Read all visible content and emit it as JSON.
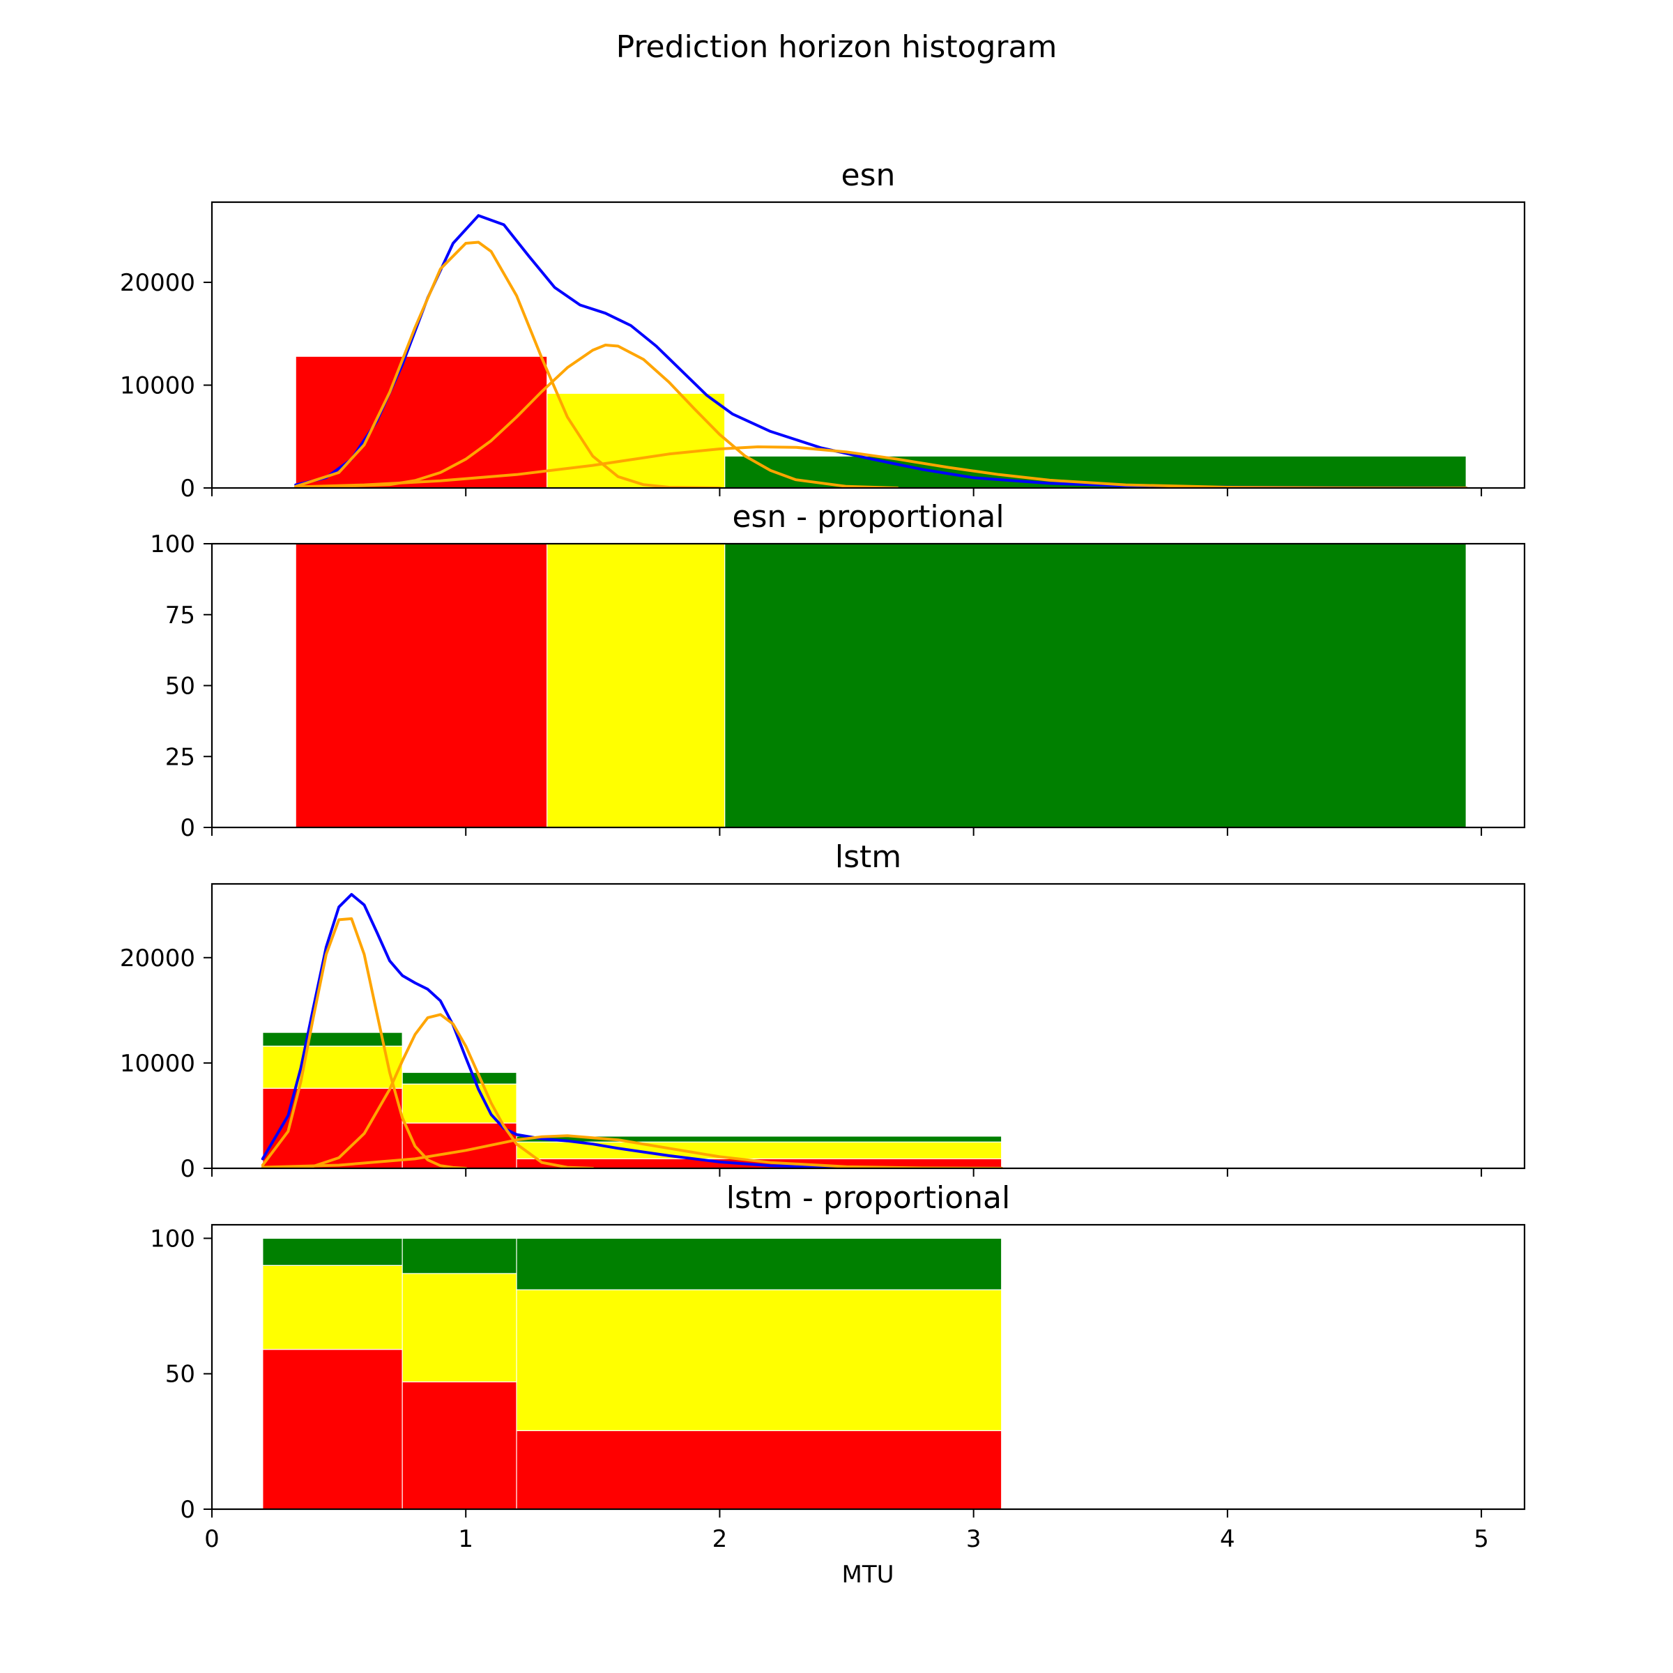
{
  "figure": {
    "title": "Prediction horizon histogram",
    "xlabel": "MTU",
    "x_ticks": [
      0,
      1,
      2,
      3,
      4,
      5
    ],
    "xlim": [
      0,
      5.17
    ]
  },
  "colors": {
    "red": "#ff0000",
    "yellow": "#ffff00",
    "green": "#008000",
    "total_curve": "#0000ff",
    "component_curve": "#ffa500"
  },
  "chart_data": [
    {
      "type": "bar",
      "title": "esn",
      "ylim": [
        0,
        27800
      ],
      "y_ticks": [
        0,
        10000,
        20000
      ],
      "bins": [
        {
          "x0": 0.33,
          "x1": 1.32,
          "segments": [
            {
              "color": "red",
              "value": 12800
            }
          ]
        },
        {
          "x0": 1.32,
          "x1": 2.02,
          "segments": [
            {
              "color": "yellow",
              "value": 9200
            }
          ]
        },
        {
          "x0": 2.02,
          "x1": 4.94,
          "segments": [
            {
              "color": "green",
              "value": 3100
            }
          ]
        }
      ],
      "curves": [
        {
          "role": "total",
          "color": "total_curve",
          "x": [
            0.33,
            0.45,
            0.55,
            0.65,
            0.75,
            0.85,
            0.95,
            1.05,
            1.15,
            1.25,
            1.35,
            1.45,
            1.55,
            1.65,
            1.75,
            1.85,
            1.95,
            2.05,
            2.2,
            2.4,
            2.6,
            2.8,
            3.0,
            3.3,
            3.6,
            4.0,
            4.5,
            4.94
          ],
          "y": [
            300,
            1000,
            2800,
            6500,
            12000,
            18500,
            23800,
            26500,
            25600,
            22500,
            19500,
            17800,
            17000,
            15800,
            13800,
            11400,
            9000,
            7200,
            5500,
            3900,
            2800,
            1800,
            1000,
            450,
            200,
            80,
            20,
            5
          ]
        },
        {
          "role": "component",
          "color": "component_curve",
          "x": [
            0.33,
            0.5,
            0.6,
            0.7,
            0.8,
            0.9,
            1.0,
            1.05,
            1.1,
            1.2,
            1.3,
            1.4,
            1.5,
            1.6,
            1.7,
            1.8,
            2.0
          ],
          "y": [
            150,
            1500,
            4200,
            9300,
            15600,
            21300,
            23800,
            23900,
            23000,
            18700,
            12600,
            6900,
            3100,
            1100,
            320,
            70,
            0
          ]
        },
        {
          "role": "component",
          "color": "component_curve",
          "x": [
            0.33,
            0.7,
            0.8,
            0.9,
            1.0,
            1.1,
            1.2,
            1.3,
            1.4,
            1.5,
            1.55,
            1.6,
            1.7,
            1.8,
            1.9,
            2.0,
            2.1,
            2.2,
            2.3,
            2.5,
            2.7
          ],
          "y": [
            20,
            320,
            720,
            1500,
            2800,
            4600,
            6900,
            9400,
            11700,
            13400,
            13900,
            13800,
            12500,
            10300,
            7700,
            5200,
            3100,
            1700,
            800,
            150,
            0
          ]
        },
        {
          "role": "component",
          "color": "component_curve",
          "x": [
            0.33,
            0.6,
            0.9,
            1.2,
            1.5,
            1.8,
            2.0,
            2.15,
            2.3,
            2.5,
            2.7,
            2.9,
            3.1,
            3.3,
            3.6,
            4.0,
            4.5,
            4.94
          ],
          "y": [
            100,
            300,
            700,
            1300,
            2200,
            3300,
            3800,
            4000,
            3950,
            3500,
            2800,
            2000,
            1300,
            750,
            300,
            70,
            10,
            0
          ]
        }
      ]
    },
    {
      "type": "bar",
      "title": "esn - proportional",
      "ylim": [
        0,
        100
      ],
      "y_ticks": [
        0,
        25,
        50,
        75,
        100
      ],
      "bins": [
        {
          "x0": 0.33,
          "x1": 1.32,
          "segments": [
            {
              "color": "red",
              "value": 100
            }
          ]
        },
        {
          "x0": 1.32,
          "x1": 2.02,
          "segments": [
            {
              "color": "yellow",
              "value": 100
            }
          ]
        },
        {
          "x0": 2.02,
          "x1": 4.94,
          "segments": [
            {
              "color": "green",
              "value": 100
            }
          ]
        }
      ]
    },
    {
      "type": "bar",
      "title": "lstm",
      "ylim": [
        0,
        27000
      ],
      "y_ticks": [
        0,
        10000,
        20000
      ],
      "bins": [
        {
          "x0": 0.2,
          "x1": 0.75,
          "segments": [
            {
              "color": "red",
              "value": 7600
            },
            {
              "color": "yellow",
              "value": 4000
            },
            {
              "color": "green",
              "value": 1300
            }
          ]
        },
        {
          "x0": 0.75,
          "x1": 1.2,
          "segments": [
            {
              "color": "red",
              "value": 4300
            },
            {
              "color": "yellow",
              "value": 3700
            },
            {
              "color": "green",
              "value": 1100
            }
          ]
        },
        {
          "x0": 1.2,
          "x1": 3.11,
          "segments": [
            {
              "color": "red",
              "value": 900
            },
            {
              "color": "yellow",
              "value": 1600
            },
            {
              "color": "green",
              "value": 550
            }
          ]
        }
      ],
      "curves": [
        {
          "role": "total",
          "color": "total_curve",
          "x": [
            0.2,
            0.3,
            0.35,
            0.4,
            0.45,
            0.5,
            0.55,
            0.6,
            0.65,
            0.7,
            0.75,
            0.8,
            0.85,
            0.9,
            0.95,
            1.0,
            1.05,
            1.1,
            1.15,
            1.2,
            1.3,
            1.4,
            1.5,
            1.6,
            1.8,
            2.0,
            2.2,
            2.5,
            2.8,
            3.11
          ],
          "y": [
            900,
            5000,
            9500,
            15300,
            21000,
            24800,
            26000,
            25000,
            22400,
            19700,
            18300,
            17600,
            17000,
            15900,
            13600,
            10500,
            7500,
            5100,
            3800,
            3200,
            2800,
            2600,
            2300,
            1900,
            1200,
            600,
            250,
            80,
            20,
            5
          ]
        },
        {
          "role": "component",
          "color": "component_curve",
          "x": [
            0.2,
            0.3,
            0.35,
            0.4,
            0.45,
            0.5,
            0.55,
            0.6,
            0.65,
            0.7,
            0.75,
            0.8,
            0.85,
            0.9,
            0.95,
            1.0
          ],
          "y": [
            300,
            3500,
            8200,
            14400,
            20300,
            23600,
            23700,
            20300,
            14700,
            9100,
            4800,
            2100,
            800,
            250,
            70,
            0
          ]
        },
        {
          "role": "component",
          "color": "component_curve",
          "x": [
            0.2,
            0.4,
            0.5,
            0.6,
            0.7,
            0.75,
            0.8,
            0.85,
            0.9,
            0.95,
            1.0,
            1.05,
            1.1,
            1.15,
            1.2,
            1.3,
            1.4,
            1.5
          ],
          "y": [
            0,
            200,
            1000,
            3300,
            7500,
            10200,
            12700,
            14300,
            14600,
            13700,
            11600,
            8900,
            6200,
            4000,
            2300,
            550,
            90,
            0
          ]
        },
        {
          "role": "component",
          "color": "component_curve",
          "x": [
            0.2,
            0.5,
            0.8,
            1.0,
            1.2,
            1.3,
            1.4,
            1.6,
            1.8,
            2.0,
            2.2,
            2.5,
            2.8,
            3.11
          ],
          "y": [
            100,
            300,
            900,
            1700,
            2700,
            3000,
            3100,
            2700,
            1900,
            1100,
            550,
            150,
            30,
            5
          ]
        }
      ]
    },
    {
      "type": "bar",
      "title": "lstm - proportional",
      "ylim": [
        0,
        105
      ],
      "y_ticks": [
        0,
        50,
        100
      ],
      "bins": [
        {
          "x0": 0.2,
          "x1": 0.75,
          "segments": [
            {
              "color": "red",
              "value": 59
            },
            {
              "color": "yellow",
              "value": 31
            },
            {
              "color": "green",
              "value": 10
            }
          ]
        },
        {
          "x0": 0.75,
          "x1": 1.2,
          "segments": [
            {
              "color": "red",
              "value": 47
            },
            {
              "color": "yellow",
              "value": 40
            },
            {
              "color": "green",
              "value": 13
            }
          ]
        },
        {
          "x0": 1.2,
          "x1": 3.11,
          "segments": [
            {
              "color": "red",
              "value": 29
            },
            {
              "color": "yellow",
              "value": 52
            },
            {
              "color": "green",
              "value": 19
            }
          ]
        }
      ]
    }
  ]
}
